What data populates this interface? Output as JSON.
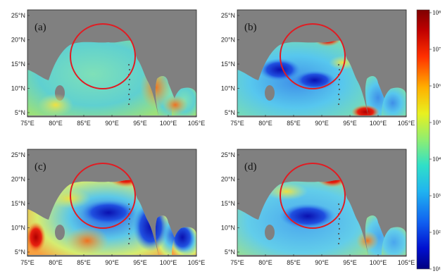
{
  "panels": [
    {
      "label": "(a)"
    },
    {
      "label": "(b)"
    },
    {
      "label": "(c)"
    },
    {
      "label": "(d)"
    }
  ],
  "axes": {
    "lon_ticks": [
      "75°E",
      "80°E",
      "85°E",
      "90°E",
      "95°E",
      "100°E",
      "105°E"
    ],
    "lat_ticks": [
      "5°N",
      "10°N",
      "15°N",
      "20°N",
      "25°N"
    ]
  },
  "colorbar": {
    "labels": [
      "10⁸",
      "10⁷",
      "10⁶",
      "10⁵",
      "10⁴",
      "10³",
      "10²",
      "10¹"
    ],
    "scale": "log",
    "colors": [
      "#7f0000",
      "#d7191c",
      "#f46d43",
      "#fdae61",
      "#fee08b",
      "#e6f598",
      "#abdda4",
      "#66c2a5",
      "#3ec1e6",
      "#2b83ba",
      "#1d4fd8",
      "#08088a"
    ]
  },
  "colors": {
    "land": "#808080",
    "circle": "#e11b22",
    "ocean_a": "#6fd8c4",
    "ocean_b": "#55b9ea",
    "ocean_c": "#c9e68a",
    "ocean_d": "#5cc6ef"
  }
}
